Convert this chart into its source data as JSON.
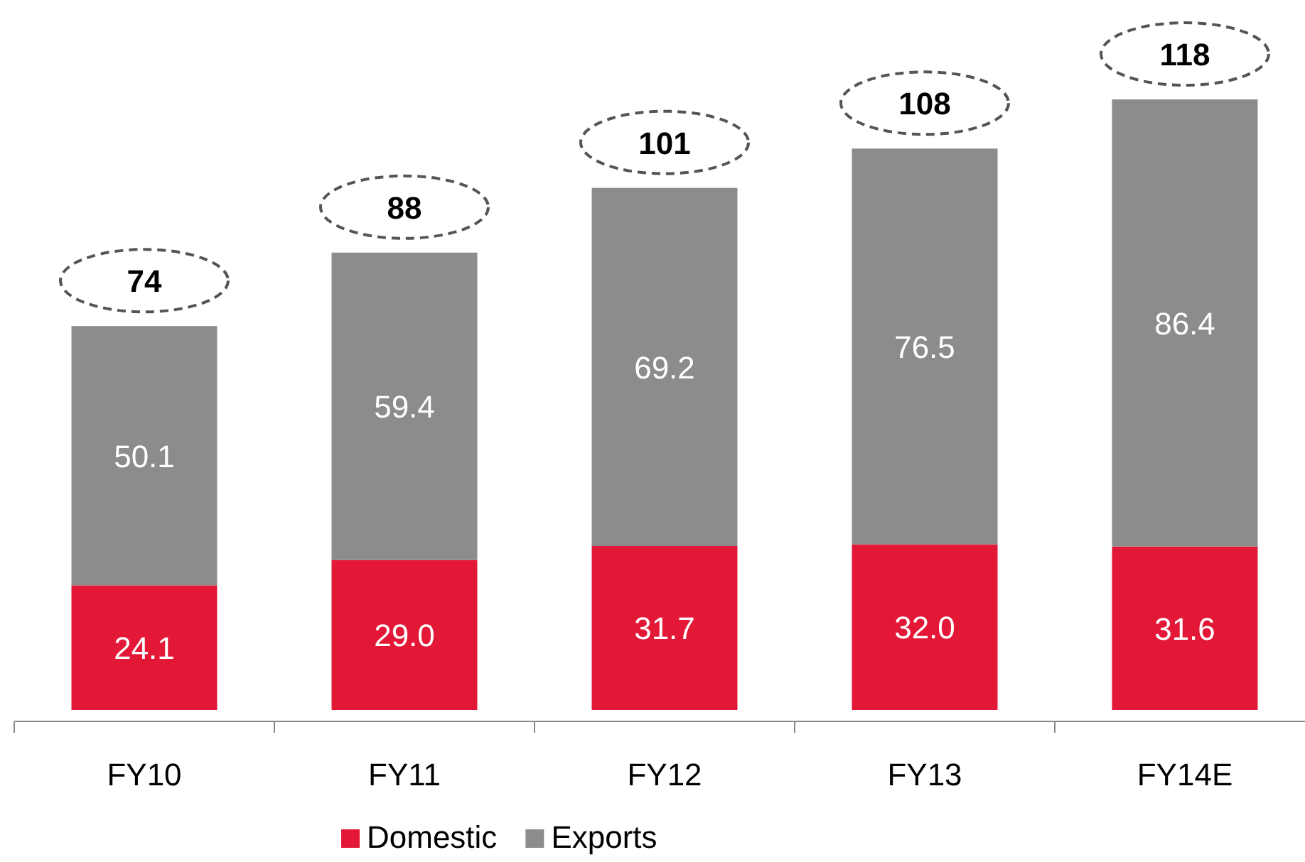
{
  "chart_data": {
    "type": "bar",
    "stacked": true,
    "categories": [
      "FY10",
      "FY11",
      "FY12",
      "FY13",
      "FY14E"
    ],
    "series": [
      {
        "name": "Domestic",
        "color": "#e31837",
        "values": [
          24.1,
          29.0,
          31.7,
          32.0,
          31.6
        ],
        "value_labels": [
          "24.1",
          "29.0",
          "31.7",
          "32.0",
          "31.6"
        ]
      },
      {
        "name": "Exports",
        "color": "#8c8c8c",
        "values": [
          50.1,
          59.4,
          69.2,
          76.5,
          86.4
        ],
        "value_labels": [
          "50.1",
          "59.4",
          "69.2",
          "76.5",
          "86.4"
        ]
      }
    ],
    "totals": [
      "74",
      "88",
      "101",
      "108",
      "118"
    ],
    "legend": "bottom"
  }
}
